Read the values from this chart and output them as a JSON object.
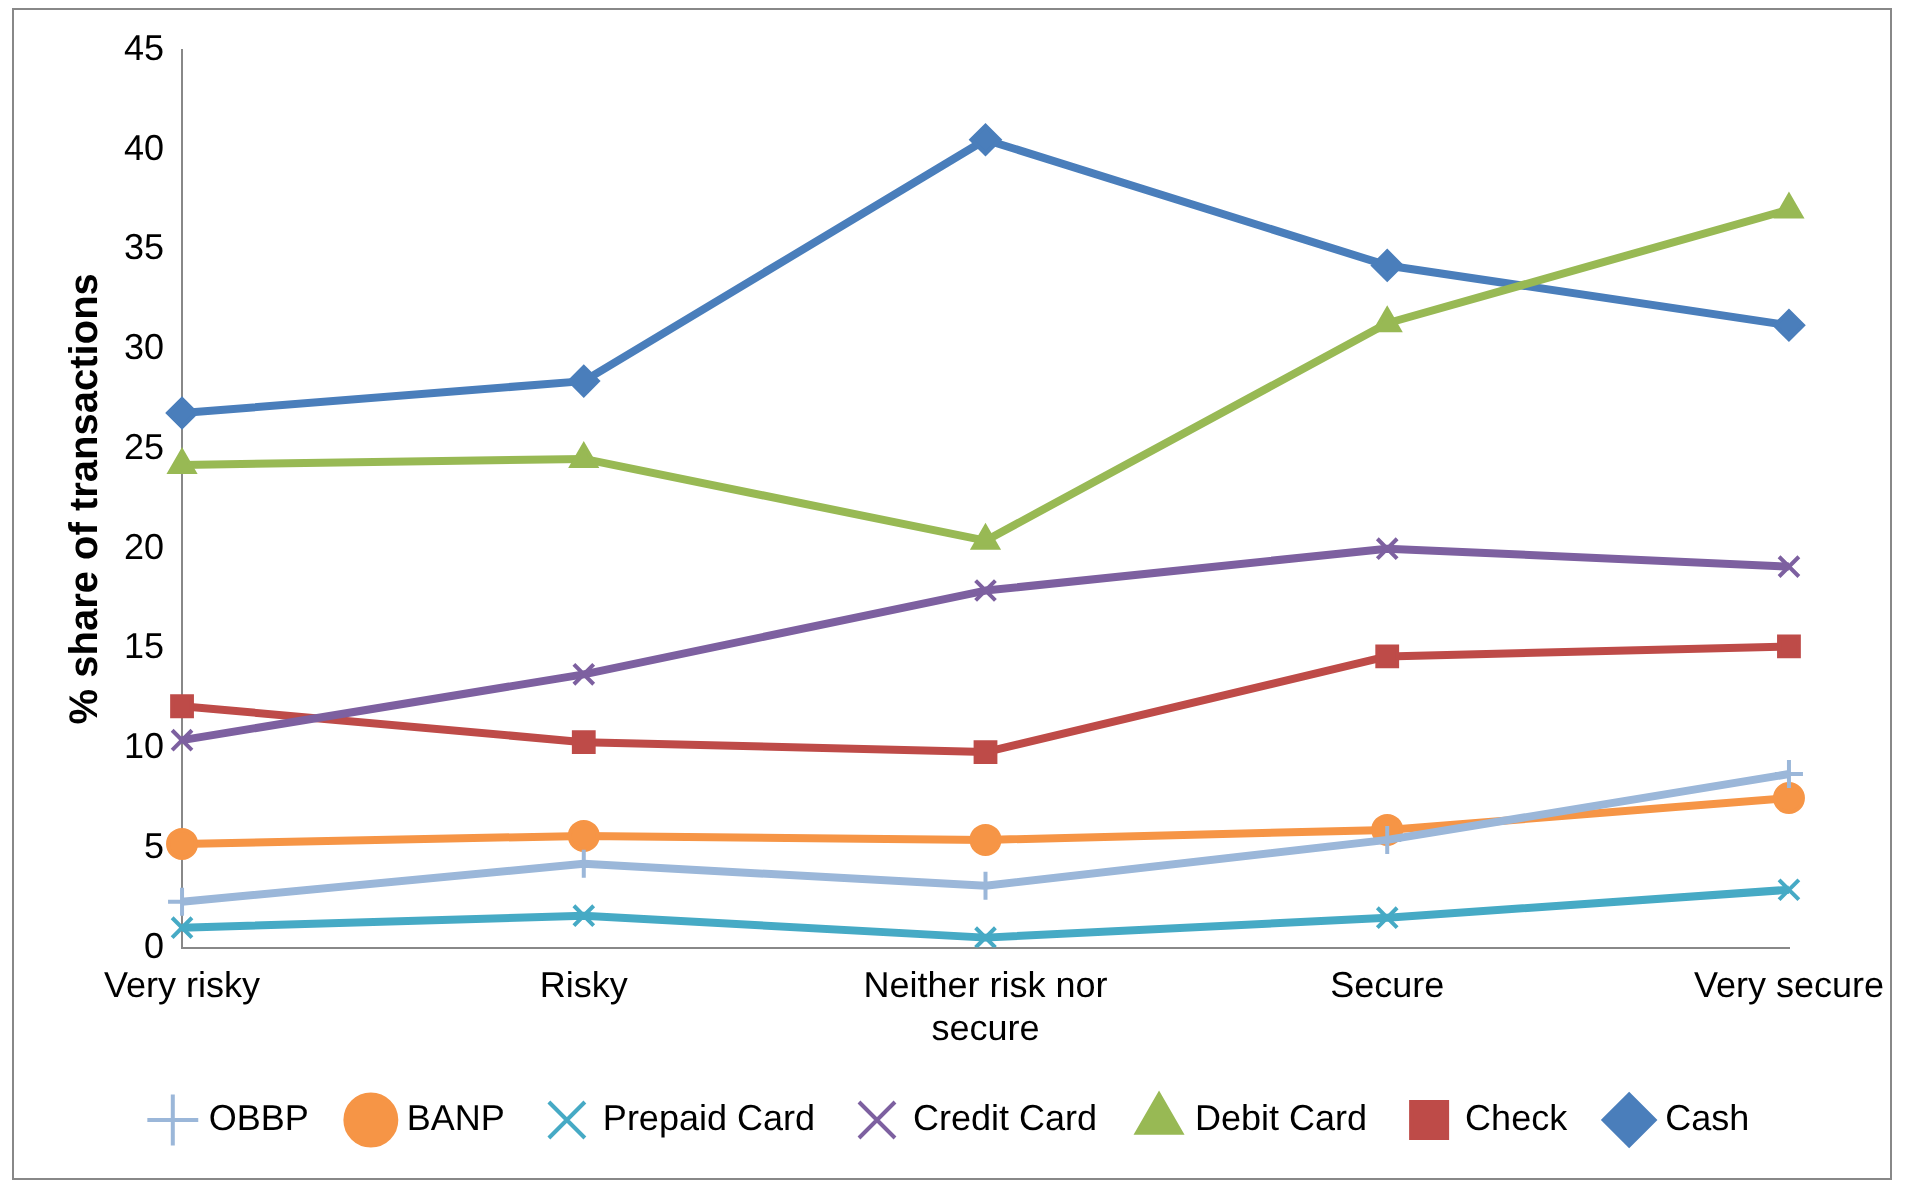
{
  "chart_data": {
    "type": "line",
    "ylabel": "% share of transactions",
    "categories": [
      "Very risky",
      "Risky",
      "Neither risk nor secure",
      "Secure",
      "Very secure"
    ],
    "ylim": [
      0,
      45
    ],
    "yticks": [
      0,
      5,
      10,
      15,
      20,
      25,
      30,
      35,
      40,
      45
    ],
    "grid": false,
    "legend": "bottom",
    "line_style": "solid",
    "series": [
      {
        "name": "Cash",
        "color": "#4a7ebb",
        "marker": "diamond",
        "values": [
          26.8,
          28.4,
          40.5,
          34.2,
          31.2
        ]
      },
      {
        "name": "Check",
        "color": "#be4b48",
        "marker": "square",
        "values": [
          12.1,
          10.3,
          9.8,
          14.6,
          15.1
        ]
      },
      {
        "name": "Debit Card",
        "color": "#98b954",
        "marker": "triangle",
        "values": [
          24.2,
          24.5,
          20.4,
          31.3,
          37.0
        ]
      },
      {
        "name": "Credit Card",
        "color": "#7d60a0",
        "marker": "cross",
        "values": [
          10.4,
          13.7,
          17.9,
          20.0,
          19.1
        ]
      },
      {
        "name": "Prepaid Card",
        "color": "#46aac5",
        "marker": "cross",
        "values": [
          1.0,
          1.6,
          0.5,
          1.5,
          2.9
        ]
      },
      {
        "name": "BANP",
        "color": "#f69546",
        "marker": "circle",
        "values": [
          5.2,
          5.6,
          5.4,
          5.9,
          7.5
        ]
      },
      {
        "name": "OBBP",
        "color": "#9bb7d9",
        "marker": "plus",
        "values": [
          2.3,
          4.2,
          3.1,
          5.4,
          8.7
        ]
      }
    ]
  }
}
